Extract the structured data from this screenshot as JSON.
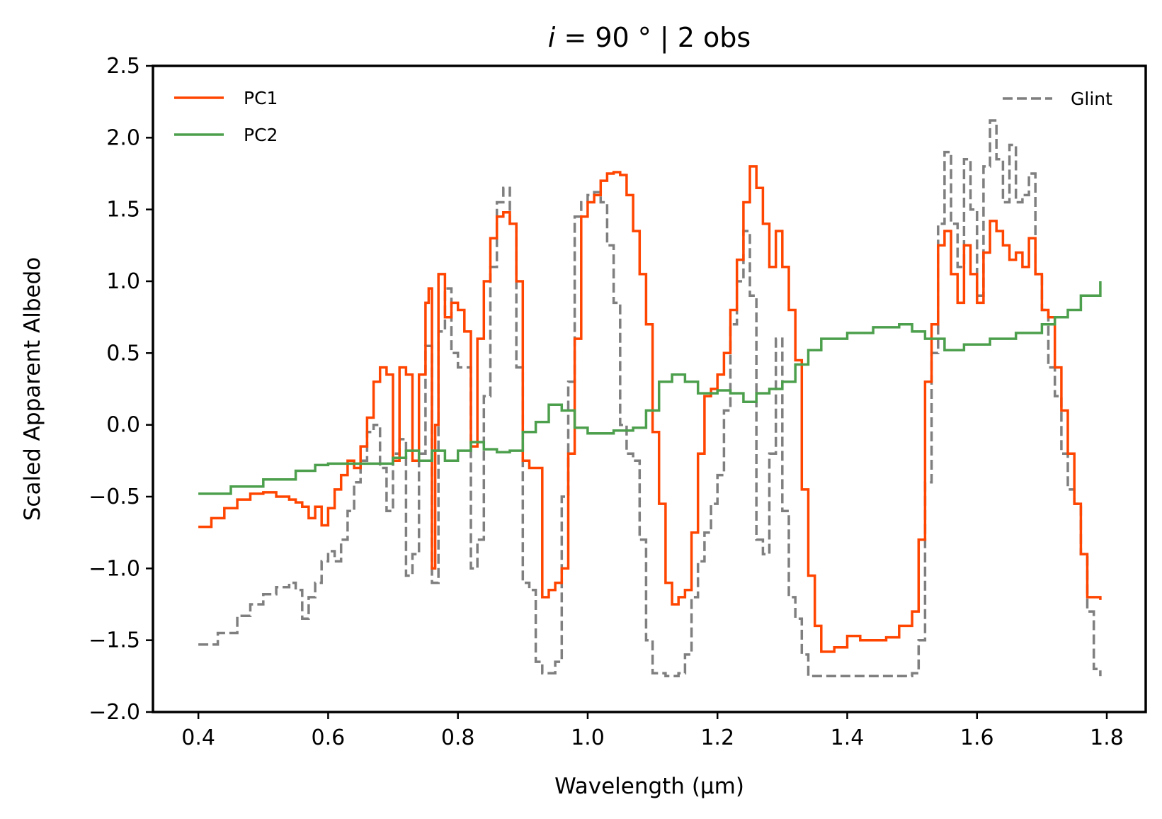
{
  "chart_data": {
    "type": "line",
    "title_italic": "i",
    "title_rest": " = 90 ° | 2 obs",
    "xlabel": "Wavelength (μm)",
    "ylabel": "Scaled Apparent Albedo",
    "xlim": [
      0.33,
      1.86
    ],
    "ylim": [
      -2.0,
      2.5
    ],
    "xticks": [
      0.4,
      0.6,
      0.8,
      1.0,
      1.2,
      1.4,
      1.6,
      1.8
    ],
    "xtick_labels": [
      "0.4",
      "0.6",
      "0.8",
      "1.0",
      "1.2",
      "1.4",
      "1.6",
      "1.8"
    ],
    "yticks": [
      -2.0,
      -1.5,
      -1.0,
      -0.5,
      0.0,
      0.5,
      1.0,
      1.5,
      2.0,
      2.5
    ],
    "ytick_labels": [
      "−2.0",
      "−1.5",
      "−1.0",
      "−0.5",
      "0.0",
      "0.5",
      "1.0",
      "1.5",
      "2.0",
      "2.5"
    ],
    "series": [
      {
        "name": "PC1",
        "color": "#ff4500",
        "style": "solid",
        "step": true,
        "points": [
          [
            0.4,
            -0.71
          ],
          [
            0.42,
            -0.65
          ],
          [
            0.44,
            -0.58
          ],
          [
            0.46,
            -0.52
          ],
          [
            0.48,
            -0.48
          ],
          [
            0.5,
            -0.47
          ],
          [
            0.52,
            -0.5
          ],
          [
            0.54,
            -0.52
          ],
          [
            0.55,
            -0.54
          ],
          [
            0.56,
            -0.57
          ],
          [
            0.57,
            -0.65
          ],
          [
            0.58,
            -0.57
          ],
          [
            0.59,
            -0.7
          ],
          [
            0.6,
            -0.58
          ],
          [
            0.61,
            -0.45
          ],
          [
            0.62,
            -0.35
          ],
          [
            0.63,
            -0.25
          ],
          [
            0.64,
            -0.3
          ],
          [
            0.65,
            -0.15
          ],
          [
            0.66,
            0.05
          ],
          [
            0.67,
            0.3
          ],
          [
            0.68,
            0.4
          ],
          [
            0.69,
            0.35
          ],
          [
            0.7,
            -0.25
          ],
          [
            0.71,
            0.4
          ],
          [
            0.72,
            0.35
          ],
          [
            0.73,
            -0.25
          ],
          [
            0.74,
            0.35
          ],
          [
            0.75,
            0.85
          ],
          [
            0.755,
            0.95
          ],
          [
            0.76,
            -1.0
          ],
          [
            0.765,
            0.0
          ],
          [
            0.77,
            1.05
          ],
          [
            0.78,
            0.75
          ],
          [
            0.79,
            0.85
          ],
          [
            0.8,
            0.8
          ],
          [
            0.81,
            0.65
          ],
          [
            0.82,
            -0.15
          ],
          [
            0.83,
            0.6
          ],
          [
            0.84,
            1.0
          ],
          [
            0.85,
            1.3
          ],
          [
            0.86,
            1.45
          ],
          [
            0.87,
            1.48
          ],
          [
            0.88,
            1.4
          ],
          [
            0.89,
            1.0
          ],
          [
            0.9,
            -0.25
          ],
          [
            0.91,
            -0.3
          ],
          [
            0.92,
            -0.3
          ],
          [
            0.93,
            -1.2
          ],
          [
            0.94,
            -1.15
          ],
          [
            0.95,
            -1.1
          ],
          [
            0.96,
            -1.0
          ],
          [
            0.97,
            -0.2
          ],
          [
            0.98,
            0.6
          ],
          [
            0.99,
            1.45
          ],
          [
            1.0,
            1.55
          ],
          [
            1.01,
            1.6
          ],
          [
            1.02,
            1.7
          ],
          [
            1.03,
            1.75
          ],
          [
            1.04,
            1.76
          ],
          [
            1.05,
            1.74
          ],
          [
            1.06,
            1.6
          ],
          [
            1.07,
            1.35
          ],
          [
            1.08,
            1.05
          ],
          [
            1.09,
            0.7
          ],
          [
            1.1,
            -0.05
          ],
          [
            1.11,
            -0.55
          ],
          [
            1.12,
            -1.1
          ],
          [
            1.13,
            -1.25
          ],
          [
            1.14,
            -1.2
          ],
          [
            1.15,
            -1.15
          ],
          [
            1.16,
            -0.75
          ],
          [
            1.17,
            -0.2
          ],
          [
            1.18,
            0.2
          ],
          [
            1.19,
            0.25
          ],
          [
            1.2,
            0.35
          ],
          [
            1.21,
            0.5
          ],
          [
            1.22,
            0.8
          ],
          [
            1.23,
            1.15
          ],
          [
            1.24,
            1.55
          ],
          [
            1.25,
            1.8
          ],
          [
            1.26,
            1.65
          ],
          [
            1.27,
            1.4
          ],
          [
            1.28,
            1.1
          ],
          [
            1.29,
            1.35
          ],
          [
            1.3,
            1.1
          ],
          [
            1.31,
            0.8
          ],
          [
            1.32,
            0.45
          ],
          [
            1.33,
            -0.45
          ],
          [
            1.34,
            -1.05
          ],
          [
            1.35,
            -1.4
          ],
          [
            1.36,
            -1.58
          ],
          [
            1.38,
            -1.55
          ],
          [
            1.4,
            -1.47
          ],
          [
            1.42,
            -1.5
          ],
          [
            1.44,
            -1.5
          ],
          [
            1.46,
            -1.48
          ],
          [
            1.48,
            -1.4
          ],
          [
            1.5,
            -1.3
          ],
          [
            1.51,
            -0.8
          ],
          [
            1.52,
            0.3
          ],
          [
            1.53,
            0.7
          ],
          [
            1.54,
            1.25
          ],
          [
            1.55,
            1.35
          ],
          [
            1.56,
            1.05
          ],
          [
            1.57,
            0.85
          ],
          [
            1.58,
            1.25
          ],
          [
            1.59,
            1.05
          ],
          [
            1.6,
            0.85
          ],
          [
            1.61,
            1.2
          ],
          [
            1.62,
            1.42
          ],
          [
            1.63,
            1.35
          ],
          [
            1.64,
            1.25
          ],
          [
            1.65,
            1.15
          ],
          [
            1.66,
            1.2
          ],
          [
            1.67,
            1.1
          ],
          [
            1.68,
            1.3
          ],
          [
            1.69,
            1.05
          ],
          [
            1.7,
            0.8
          ],
          [
            1.71,
            0.75
          ],
          [
            1.72,
            0.4
          ],
          [
            1.73,
            0.1
          ],
          [
            1.74,
            -0.2
          ],
          [
            1.75,
            -0.55
          ],
          [
            1.76,
            -0.9
          ],
          [
            1.77,
            -1.2
          ],
          [
            1.79,
            -1.22
          ]
        ]
      },
      {
        "name": "PC2",
        "color": "#4c9f4c",
        "style": "solid",
        "step": true,
        "points": [
          [
            0.4,
            -0.48
          ],
          [
            0.45,
            -0.43
          ],
          [
            0.5,
            -0.38
          ],
          [
            0.55,
            -0.32
          ],
          [
            0.58,
            -0.28
          ],
          [
            0.6,
            -0.27
          ],
          [
            0.65,
            -0.27
          ],
          [
            0.7,
            -0.23
          ],
          [
            0.72,
            -0.18
          ],
          [
            0.74,
            -0.25
          ],
          [
            0.76,
            -0.18
          ],
          [
            0.78,
            -0.25
          ],
          [
            0.8,
            -0.18
          ],
          [
            0.82,
            -0.12
          ],
          [
            0.84,
            -0.17
          ],
          [
            0.86,
            -0.19
          ],
          [
            0.88,
            -0.18
          ],
          [
            0.9,
            -0.05
          ],
          [
            0.92,
            0.02
          ],
          [
            0.94,
            0.14
          ],
          [
            0.96,
            0.1
          ],
          [
            0.98,
            -0.02
          ],
          [
            1.0,
            -0.06
          ],
          [
            1.04,
            -0.04
          ],
          [
            1.07,
            -0.02
          ],
          [
            1.09,
            0.1
          ],
          [
            1.11,
            0.3
          ],
          [
            1.13,
            0.35
          ],
          [
            1.15,
            0.3
          ],
          [
            1.17,
            0.22
          ],
          [
            1.2,
            0.24
          ],
          [
            1.22,
            0.22
          ],
          [
            1.24,
            0.16
          ],
          [
            1.26,
            0.22
          ],
          [
            1.28,
            0.25
          ],
          [
            1.3,
            0.3
          ],
          [
            1.32,
            0.42
          ],
          [
            1.34,
            0.52
          ],
          [
            1.36,
            0.6
          ],
          [
            1.4,
            0.64
          ],
          [
            1.44,
            0.68
          ],
          [
            1.48,
            0.7
          ],
          [
            1.5,
            0.65
          ],
          [
            1.52,
            0.6
          ],
          [
            1.55,
            0.52
          ],
          [
            1.58,
            0.56
          ],
          [
            1.62,
            0.6
          ],
          [
            1.66,
            0.64
          ],
          [
            1.7,
            0.7
          ],
          [
            1.72,
            0.75
          ],
          [
            1.74,
            0.8
          ],
          [
            1.76,
            0.9
          ],
          [
            1.79,
            1.0
          ]
        ]
      },
      {
        "name": "Glint",
        "color": "#7f7f7f",
        "style": "dashed",
        "step": true,
        "points": [
          [
            0.4,
            -1.53
          ],
          [
            0.43,
            -1.45
          ],
          [
            0.46,
            -1.33
          ],
          [
            0.48,
            -1.25
          ],
          [
            0.5,
            -1.18
          ],
          [
            0.52,
            -1.13
          ],
          [
            0.54,
            -1.1
          ],
          [
            0.55,
            -1.15
          ],
          [
            0.56,
            -1.35
          ],
          [
            0.57,
            -1.2
          ],
          [
            0.58,
            -1.1
          ],
          [
            0.59,
            -0.95
          ],
          [
            0.6,
            -0.88
          ],
          [
            0.61,
            -0.95
          ],
          [
            0.62,
            -0.8
          ],
          [
            0.63,
            -0.6
          ],
          [
            0.64,
            -0.4
          ],
          [
            0.65,
            -0.25
          ],
          [
            0.66,
            -0.05
          ],
          [
            0.67,
            0.0
          ],
          [
            0.68,
            -0.3
          ],
          [
            0.69,
            -0.6
          ],
          [
            0.7,
            -0.2
          ],
          [
            0.71,
            -0.1
          ],
          [
            0.72,
            -1.05
          ],
          [
            0.73,
            -0.9
          ],
          [
            0.74,
            -0.2
          ],
          [
            0.75,
            0.55
          ],
          [
            0.76,
            -1.1
          ],
          [
            0.77,
            0.65
          ],
          [
            0.78,
            0.95
          ],
          [
            0.79,
            0.5
          ],
          [
            0.8,
            0.4
          ],
          [
            0.81,
            0.4
          ],
          [
            0.82,
            -1.0
          ],
          [
            0.83,
            -0.8
          ],
          [
            0.84,
            0.2
          ],
          [
            0.85,
            1.1
          ],
          [
            0.86,
            1.55
          ],
          [
            0.87,
            1.65
          ],
          [
            0.88,
            1.4
          ],
          [
            0.89,
            0.4
          ],
          [
            0.9,
            -1.1
          ],
          [
            0.91,
            -1.15
          ],
          [
            0.92,
            -1.65
          ],
          [
            0.93,
            -1.73
          ],
          [
            0.94,
            -1.73
          ],
          [
            0.95,
            -1.65
          ],
          [
            0.96,
            -0.5
          ],
          [
            0.97,
            0.3
          ],
          [
            0.98,
            1.45
          ],
          [
            0.99,
            1.55
          ],
          [
            1.0,
            1.6
          ],
          [
            1.01,
            1.62
          ],
          [
            1.02,
            1.55
          ],
          [
            1.03,
            1.25
          ],
          [
            1.04,
            0.85
          ],
          [
            1.05,
            0.0
          ],
          [
            1.06,
            -0.2
          ],
          [
            1.07,
            -0.25
          ],
          [
            1.08,
            -0.8
          ],
          [
            1.09,
            -1.5
          ],
          [
            1.1,
            -1.73
          ],
          [
            1.12,
            -1.75
          ],
          [
            1.14,
            -1.73
          ],
          [
            1.15,
            -1.6
          ],
          [
            1.16,
            -1.2
          ],
          [
            1.17,
            -0.95
          ],
          [
            1.18,
            -0.75
          ],
          [
            1.19,
            -0.55
          ],
          [
            1.2,
            -0.35
          ],
          [
            1.21,
            0.1
          ],
          [
            1.22,
            0.7
          ],
          [
            1.23,
            1.0
          ],
          [
            1.24,
            1.35
          ],
          [
            1.25,
            0.9
          ],
          [
            1.26,
            -0.8
          ],
          [
            1.27,
            -0.9
          ],
          [
            1.28,
            -0.2
          ],
          [
            1.29,
            0.6
          ],
          [
            1.3,
            -0.6
          ],
          [
            1.31,
            -1.2
          ],
          [
            1.32,
            -1.35
          ],
          [
            1.33,
            -1.6
          ],
          [
            1.34,
            -1.75
          ],
          [
            1.38,
            -1.75
          ],
          [
            1.42,
            -1.75
          ],
          [
            1.46,
            -1.75
          ],
          [
            1.5,
            -1.73
          ],
          [
            1.51,
            -1.5
          ],
          [
            1.52,
            -0.4
          ],
          [
            1.53,
            0.5
          ],
          [
            1.54,
            1.4
          ],
          [
            1.55,
            1.9
          ],
          [
            1.56,
            1.4
          ],
          [
            1.57,
            1.1
          ],
          [
            1.58,
            1.85
          ],
          [
            1.59,
            1.5
          ],
          [
            1.6,
            0.9
          ],
          [
            1.61,
            1.8
          ],
          [
            1.62,
            2.12
          ],
          [
            1.63,
            1.85
          ],
          [
            1.64,
            1.55
          ],
          [
            1.65,
            1.95
          ],
          [
            1.66,
            1.55
          ],
          [
            1.67,
            1.6
          ],
          [
            1.68,
            1.75
          ],
          [
            1.69,
            1.05
          ],
          [
            1.7,
            0.8
          ],
          [
            1.71,
            0.4
          ],
          [
            1.72,
            0.2
          ],
          [
            1.73,
            -0.2
          ],
          [
            1.74,
            -0.45
          ],
          [
            1.75,
            -0.55
          ],
          [
            1.76,
            -0.9
          ],
          [
            1.77,
            -1.3
          ],
          [
            1.78,
            -1.7
          ],
          [
            1.79,
            -1.75
          ]
        ]
      }
    ]
  }
}
